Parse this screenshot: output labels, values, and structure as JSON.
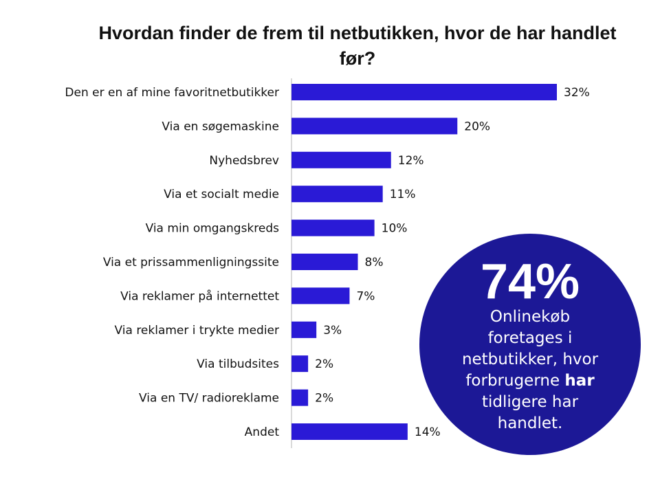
{
  "chart_data": {
    "type": "bar",
    "orientation": "horizontal",
    "title": "Hvordan finder de frem til netbutikken, hvor de har handlet før?",
    "categories": [
      "Den er en af mine favoritnetbutikker",
      "Via en søgemaskine",
      "Nyhedsbrev",
      "Via et socialt medie",
      "Via min omgangskreds",
      "Via et prissammenligningssite",
      "Via reklamer på internettet",
      "Via reklamer i trykte medier",
      "Via tilbudsites",
      "Via en TV/ radioreklame",
      "Andet"
    ],
    "values": [
      32,
      20,
      12,
      11,
      10,
      8,
      7,
      3,
      2,
      2,
      14
    ],
    "value_labels": [
      "32%",
      "20%",
      "12%",
      "11%",
      "10%",
      "8%",
      "7%",
      "3%",
      "2%",
      "2%",
      "14%"
    ],
    "unit": "%",
    "xlim": [
      0,
      32
    ],
    "grid": false,
    "bar_color": "#2a1ad6"
  },
  "callout": {
    "value": "74%",
    "line1": "Onlinekøb",
    "line2": "foretages i",
    "line3": "netbutikker, hvor",
    "line4_pre": "forbrugerne ",
    "line4_bold": "har",
    "line5": "tidligere har",
    "line6": "handlet.",
    "color": "#1c1896"
  }
}
